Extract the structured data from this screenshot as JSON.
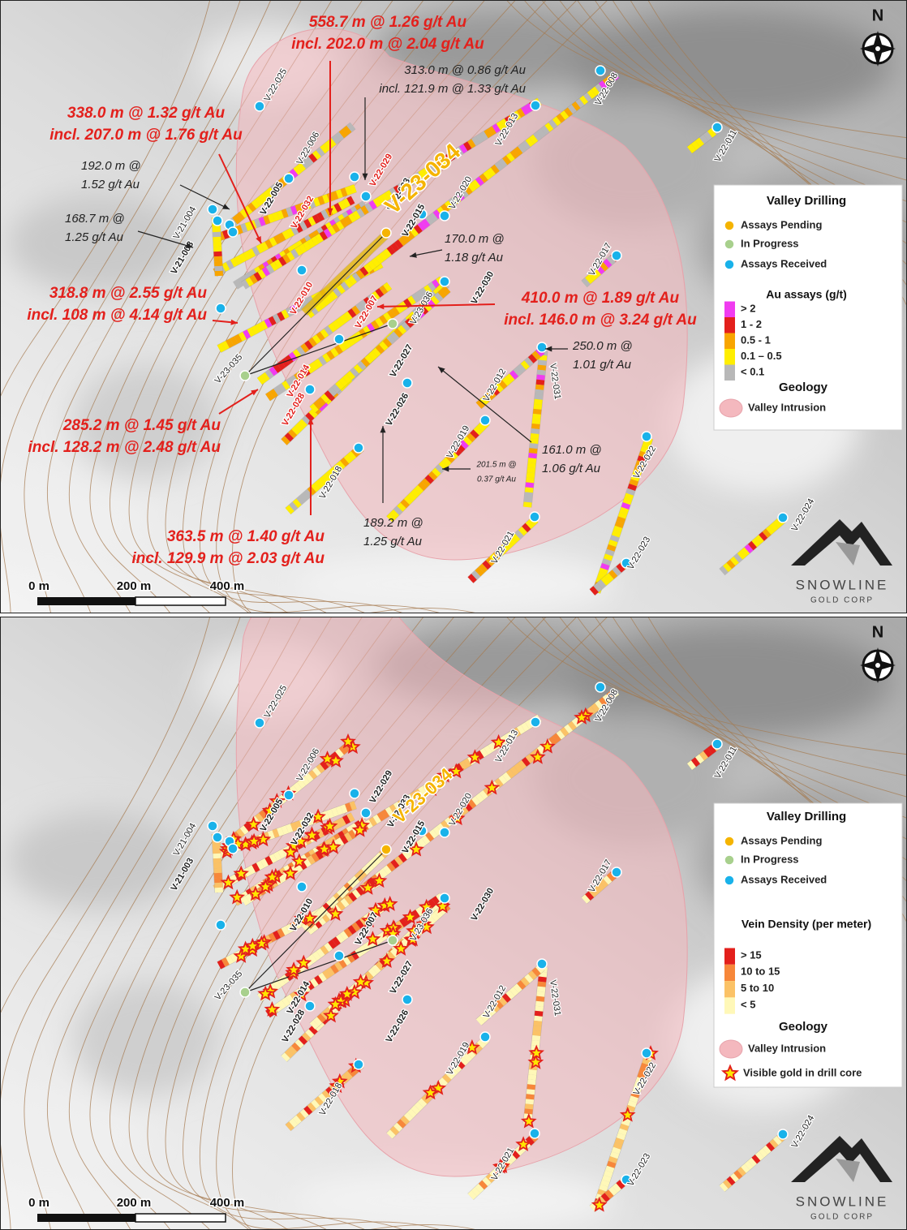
{
  "panels": [
    {
      "north": "N",
      "holes": [
        "V-22-025",
        "V-22-006",
        "V-22-005",
        "V-21-004",
        "V-21-003",
        "V-22-032",
        "V-22-029",
        "V-22-033",
        "V-23-034",
        "V-22-015",
        "V-22-020",
        "V-22-013",
        "V-22-008",
        "V-22-011",
        "V-22-017",
        "V-22-010",
        "V-22-007",
        "V-23-036",
        "V-22-030",
        "V-22-014",
        "V-22-028",
        "V-22-027",
        "V-22-026",
        "V-22-012",
        "V-22-031",
        "V-22-019",
        "V-22-022",
        "V-22-018",
        "V-23-035",
        "V-22-021",
        "V-22-024",
        "V-22-023"
      ],
      "callouts": [
        {
          "lines": [
            "558.7 m @ 1.26 g/t Au",
            "incl. 202.0 m @ 2.04 g/t Au"
          ]
        },
        {
          "lines": [
            "313.0 m @ 0.86 g/t Au",
            "incl. 121.9 m @ 1.33 g/t Au"
          ]
        },
        {
          "lines": [
            "338.0 m @ 1.32 g/t Au",
            "incl. 207.0 m @ 1.76 g/t Au"
          ]
        },
        {
          "lines": [
            "192.0 m @",
            "1.52 g/t Au"
          ]
        },
        {
          "lines": [
            "168.7 m @",
            "1.25 g/t Au"
          ]
        },
        {
          "lines": [
            "170.0 m @",
            "1.18 g/t Au"
          ]
        },
        {
          "lines": [
            "318.8 m @ 2.55 g/t Au",
            "incl. 108 m @ 4.14 g/t Au"
          ]
        },
        {
          "lines": [
            "410.0 m @ 1.89 g/t Au",
            "incl. 146.0 m @ 3.24 g/t Au"
          ]
        },
        {
          "lines": [
            "250.0 m @",
            "1.01 g/t Au"
          ]
        },
        {
          "lines": [
            "285.2 m @ 1.45 g/t Au",
            "incl. 128.2 m @ 2.48 g/t Au"
          ]
        },
        {
          "lines": [
            "161.0 m @",
            "1.06 g/t Au"
          ]
        },
        {
          "lines": [
            "201.5 m @",
            "0.37 g/t Au"
          ]
        },
        {
          "lines": [
            "189.2 m @",
            "1.25 g/t Au"
          ]
        },
        {
          "lines": [
            "363.5 m @ 1.40 g/t Au",
            "incl. 129.9 m @ 2.03 g/t Au"
          ]
        }
      ],
      "legend": {
        "title": "Valley Drilling",
        "status": [
          {
            "label": "Assays Pending",
            "color": "#f5b400"
          },
          {
            "label": "In Progress",
            "color": "#a8d08d"
          },
          {
            "label": "Assays Received",
            "color": "#19b2ea"
          }
        ],
        "scale_title": "Au assays (g/t)",
        "scale": [
          {
            "label": "> 2",
            "color": "#f03cf0"
          },
          {
            "label": "1 - 2",
            "color": "#e3201c"
          },
          {
            "label": "0.5 - 1",
            "color": "#f8a500"
          },
          {
            "label": "0.1 – 0.5",
            "color": "#ffee00"
          },
          {
            "label": "< 0.1",
            "color": "#b8b8b8"
          }
        ],
        "geology_title": "Geology",
        "geology": [
          {
            "label": "Valley Intrusion",
            "color": "#f4b8be"
          }
        ]
      },
      "scale_bar": [
        "0 m",
        "200 m",
        "400 m"
      ],
      "logo": {
        "name": "SNOWLINE",
        "sub": "GOLD CORP"
      }
    },
    {
      "north": "N",
      "holes": [
        "V-22-025",
        "V-22-006",
        "V-22-005",
        "V-21-004",
        "V-21-003",
        "V-22-032",
        "V-22-029",
        "V-22-033",
        "V-23-034",
        "V-22-015",
        "V-22-020",
        "V-22-013",
        "V-22-008",
        "V-22-011",
        "V-22-017",
        "V-22-010",
        "V-22-007",
        "V-23-036",
        "V-22-030",
        "V-22-014",
        "V-22-028",
        "V-22-027",
        "V-22-026",
        "V-22-012",
        "V-22-031",
        "V-22-019",
        "V-22-022",
        "V-22-018",
        "V-23-035",
        "V-22-021",
        "V-22-024",
        "V-22-023"
      ],
      "legend": {
        "title": "Valley Drilling",
        "status": [
          {
            "label": "Assays Pending",
            "color": "#f5b400"
          },
          {
            "label": "In Progress",
            "color": "#a8d08d"
          },
          {
            "label": "Assays Received",
            "color": "#19b2ea"
          }
        ],
        "scale_title": "Vein Density (per meter)",
        "scale": [
          {
            "label": "> 15",
            "color": "#e3201c"
          },
          {
            "label": "10 to 15",
            "color": "#f7873a"
          },
          {
            "label": "5 to 10",
            "color": "#fbc266"
          },
          {
            "label": "< 5",
            "color": "#fff8b8"
          }
        ],
        "geology_title": "Geology",
        "geology": [
          {
            "label": "Valley Intrusion",
            "color": "#f4b8be"
          }
        ],
        "marker": {
          "label": "Visible gold in drill core",
          "color": "#e3201c"
        }
      },
      "scale_bar": [
        "0 m",
        "200 m",
        "400 m"
      ],
      "logo": {
        "name": "SNOWLINE",
        "sub": "GOLD CORP"
      }
    }
  ]
}
